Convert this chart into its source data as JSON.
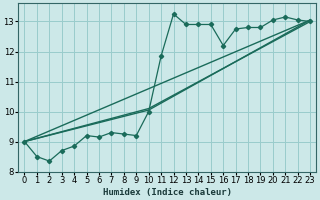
{
  "xlabel": "Humidex (Indice chaleur)",
  "bg_color": "#cce8e8",
  "grid_color": "#99cccc",
  "line_color": "#1a6b5a",
  "xlim": [
    -0.5,
    23.5
  ],
  "ylim": [
    8,
    13.6
  ],
  "yticks": [
    8,
    9,
    10,
    11,
    12,
    13
  ],
  "xticks": [
    0,
    1,
    2,
    3,
    4,
    5,
    6,
    7,
    8,
    9,
    10,
    11,
    12,
    13,
    14,
    15,
    16,
    17,
    18,
    19,
    20,
    21,
    22,
    23
  ],
  "main_x": [
    0,
    1,
    2,
    3,
    4,
    5,
    6,
    7,
    8,
    9,
    10,
    11,
    12,
    13,
    14,
    15,
    16,
    17,
    18,
    19,
    20,
    21,
    22,
    23
  ],
  "main_y": [
    9.0,
    8.5,
    8.35,
    8.7,
    8.85,
    9.2,
    9.15,
    9.3,
    9.25,
    9.2,
    10.0,
    11.85,
    13.25,
    12.9,
    12.9,
    12.9,
    12.2,
    12.75,
    12.8,
    12.8,
    13.05,
    13.15,
    13.05,
    13.0
  ],
  "trend1_x": [
    0,
    23
  ],
  "trend1_y": [
    9.0,
    13.05
  ],
  "trend2_x": [
    0,
    10,
    23
  ],
  "trend2_y": [
    9.0,
    10.1,
    13.0
  ],
  "trend3_x": [
    0,
    10,
    23
  ],
  "trend3_y": [
    9.0,
    10.05,
    13.05
  ]
}
